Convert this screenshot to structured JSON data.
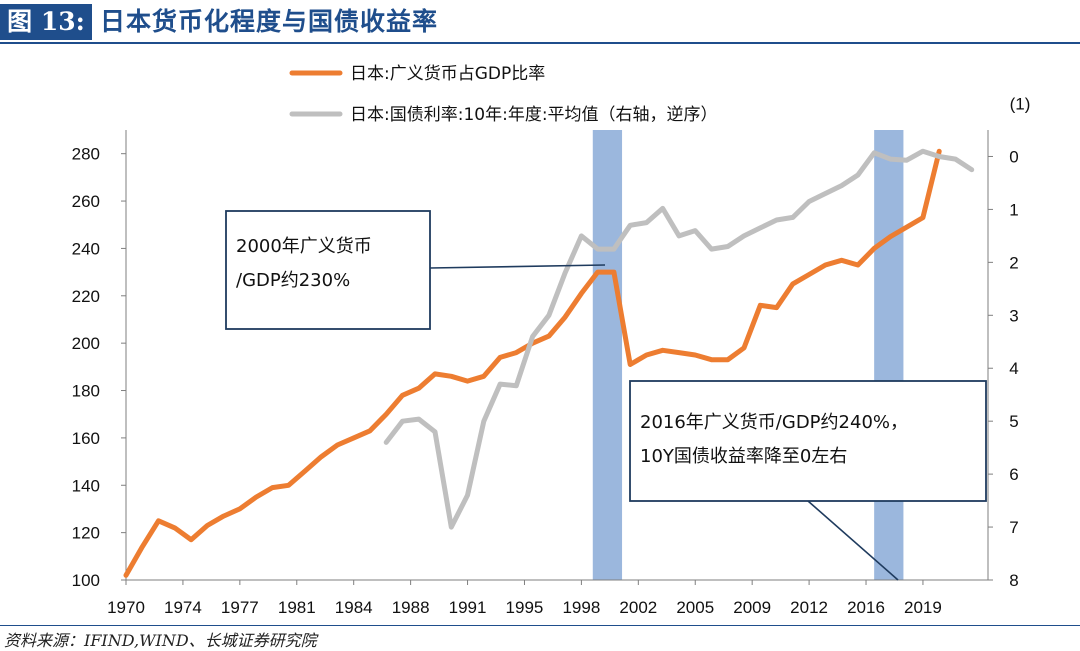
{
  "header": {
    "figure_label": "图 13:",
    "title": "日本货币化程度与国债收益率"
  },
  "source": "资料来源：IFIND,WIND、长城证券研究院",
  "colors": {
    "m2_series": "#ed7d31",
    "yield_series": "#bfbfbf",
    "shade": "#9bb7dd",
    "box_border": "#1f3b5e",
    "title_blue": "#1f4e8c",
    "right_axis_top_label": "#e02020"
  },
  "chart_data": {
    "type": "line",
    "legend": [
      {
        "key": "m2",
        "label": "日本:广义货币占GDP比率"
      },
      {
        "key": "yield",
        "label": "日本:国债利率:10年:年度:平均值（右轴，逆序）"
      }
    ],
    "x_tick_labels": [
      "1970",
      "1974",
      "1977",
      "1981",
      "1984",
      "1988",
      "1991",
      "1995",
      "1998",
      "2002",
      "2005",
      "2009",
      "2012",
      "2016",
      "2019"
    ],
    "x_ticks": [
      1970,
      1973.5,
      1977,
      1980.5,
      1984,
      1987.5,
      1991,
      1994.5,
      1998,
      2001.5,
      2005,
      2008.5,
      2012,
      2015.5,
      2019
    ],
    "xlim": [
      1970,
      2023
    ],
    "left_axis": {
      "ylim": [
        100,
        290
      ],
      "ticks": [
        100,
        120,
        140,
        160,
        180,
        200,
        220,
        240,
        260,
        280
      ]
    },
    "right_axis": {
      "ylim": [
        -0.5,
        8
      ],
      "inverted": true,
      "ticks": [
        0,
        1,
        2,
        3,
        4,
        5,
        6,
        7,
        8
      ],
      "top_label": "(1)"
    },
    "shaded_ranges": [
      [
        1998.7,
        2000.5
      ],
      [
        2016,
        2017.8
      ]
    ],
    "series": [
      {
        "key": "m2",
        "axis": "left",
        "x": [
          1970,
          1971,
          1972,
          1973,
          1974,
          1975,
          1976,
          1977,
          1978,
          1979,
          1980,
          1981,
          1982,
          1983,
          1984,
          1985,
          1986,
          1987,
          1988,
          1989,
          1990,
          1991,
          1992,
          1993,
          1994,
          1995,
          1996,
          1997,
          1998,
          1999,
          2000,
          2001,
          2002,
          2003,
          2004,
          2005,
          2006,
          2007,
          2008,
          2009,
          2010,
          2011,
          2012,
          2013,
          2014,
          2015,
          2016,
          2017,
          2018,
          2019,
          2020
        ],
        "y": [
          102,
          114,
          125,
          122,
          117,
          123,
          127,
          130,
          135,
          139,
          140,
          146,
          152,
          157,
          160,
          163,
          170,
          178,
          181,
          187,
          186,
          184,
          186,
          194,
          196,
          200,
          203,
          211,
          221,
          230,
          230,
          191,
          195,
          197,
          196,
          195,
          193,
          193,
          198,
          216,
          215,
          225,
          229,
          233,
          235,
          233,
          240,
          245,
          249,
          253,
          281
        ]
      },
      {
        "key": "yield",
        "axis": "right",
        "x": [
          1986,
          1987,
          1988,
          1989,
          1990,
          1991,
          1992,
          1993,
          1994,
          1995,
          1996,
          1997,
          1998,
          1999,
          2000,
          2001,
          2002,
          2003,
          2004,
          2005,
          2006,
          2007,
          2008,
          2009,
          2010,
          2011,
          2012,
          2013,
          2014,
          2015,
          2016,
          2017,
          2018,
          2019,
          2020,
          2021,
          2022
        ],
        "y": [
          5.4,
          5.0,
          4.96,
          5.2,
          7.0,
          6.4,
          5.0,
          4.3,
          4.33,
          3.4,
          3.0,
          2.2,
          1.5,
          1.75,
          1.75,
          1.3,
          1.25,
          0.98,
          1.5,
          1.4,
          1.75,
          1.7,
          1.5,
          1.35,
          1.2,
          1.15,
          0.85,
          0.7,
          0.55,
          0.35,
          -0.07,
          0.05,
          0.07,
          -0.1,
          0.0,
          0.05,
          0.25
        ]
      }
    ],
    "annotations": [
      {
        "lines": [
          "2000年广义货币",
          "/GDP约230%"
        ]
      },
      {
        "lines": [
          "2016年广义货币/GDP约240%，",
          "10Y国债收益率降至0左右"
        ]
      }
    ]
  }
}
